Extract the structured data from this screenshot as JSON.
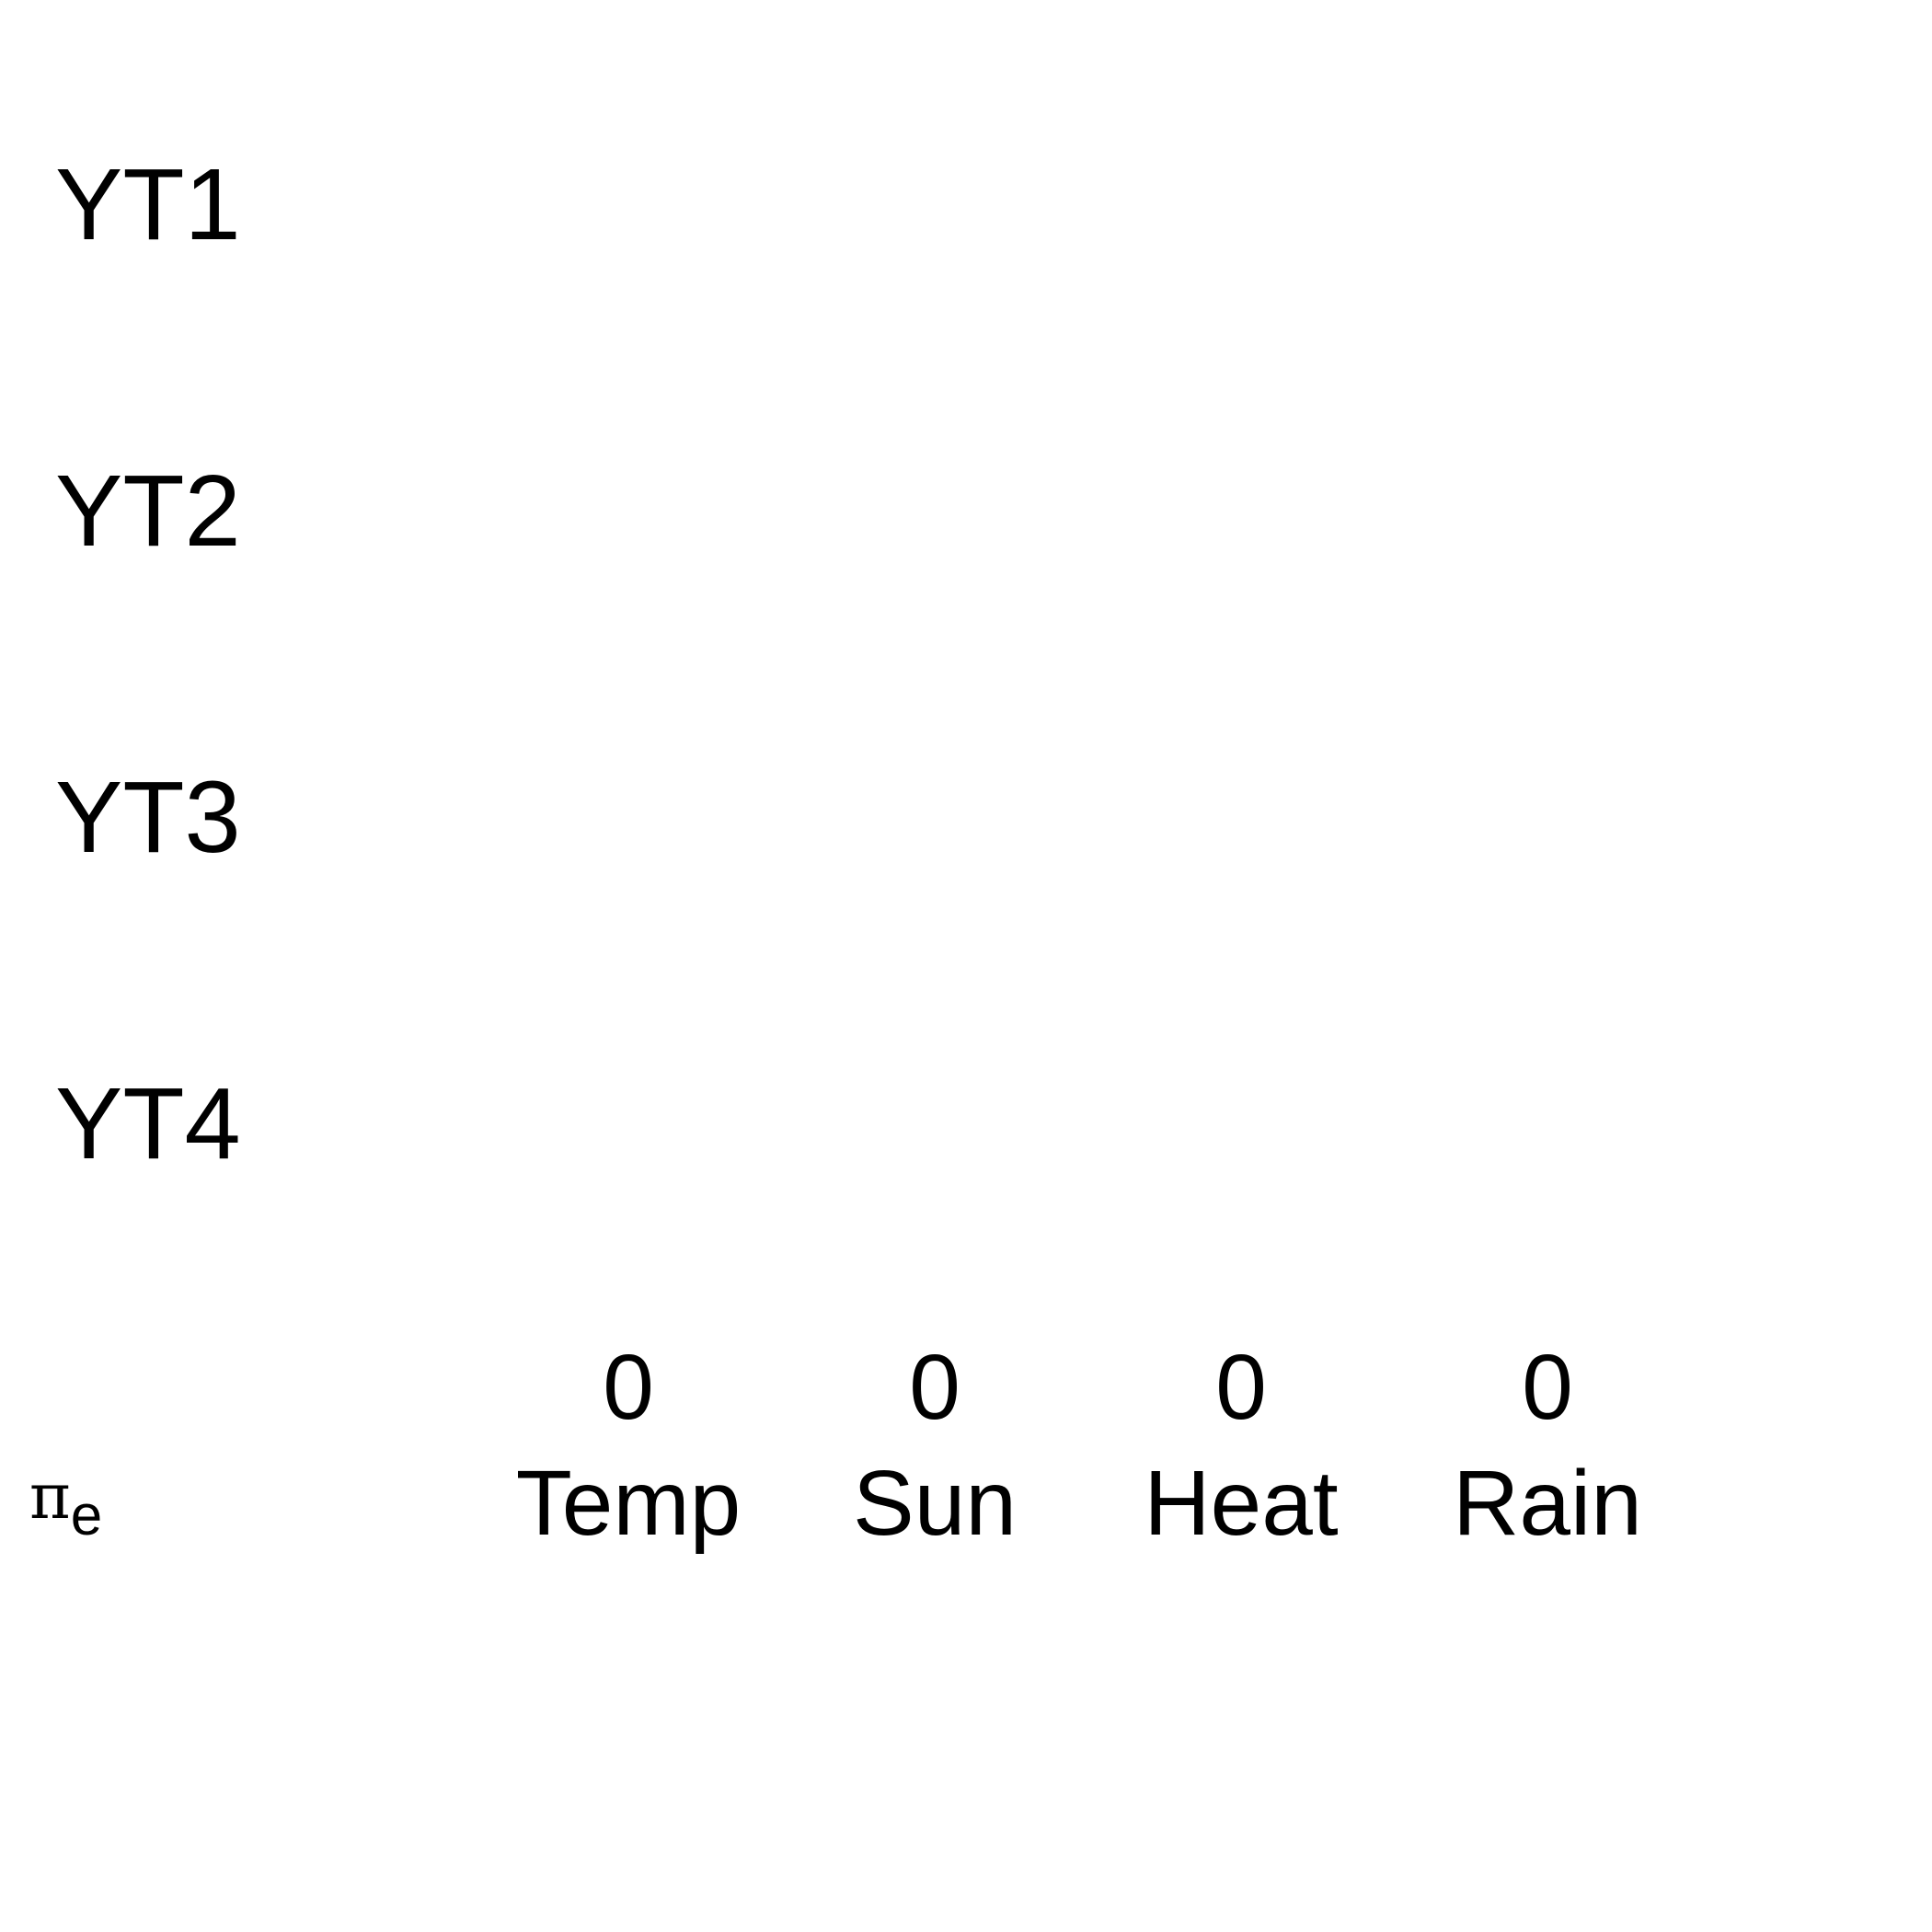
{
  "chart_data": {
    "type": "table",
    "rows": [
      "YT1",
      "YT2",
      "YT3",
      "YT4"
    ],
    "columns": [
      "Temp",
      "Sun",
      "Heat",
      "Rain"
    ],
    "row_label": "π",
    "row_label_subscript": "e",
    "values": [
      0,
      0,
      0,
      0
    ]
  }
}
